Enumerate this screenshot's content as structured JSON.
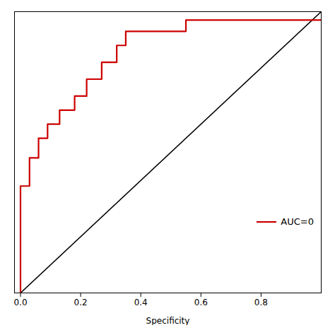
{
  "chart_data": {
    "type": "line",
    "xlabel": "Specificity",
    "xlim": [
      -0.02,
      1.0
    ],
    "ylim": [
      0.0,
      1.0
    ],
    "xticks": [
      {
        "value": 0.0,
        "label": "0.0"
      },
      0.2,
      0.4,
      0.6,
      0.8
    ],
    "yticks": [],
    "tick_labels": "x",
    "legend": "lower right",
    "series": [
      {
        "color": "#000000",
        "x": [
          0,
          1
        ],
        "values": [
          0,
          1
        ]
      },
      {
        "name": "AUC=0",
        "color": "#cc0000",
        "x": [
          0.0,
          0.0,
          0.03,
          0.03,
          0.06,
          0.06,
          0.09,
          0.09,
          0.13,
          0.13,
          0.18,
          0.18,
          0.22,
          0.22,
          0.27,
          0.27,
          0.32,
          0.32,
          0.35,
          0.35,
          0.55,
          0.55,
          1.0
        ],
        "values": [
          0.0,
          0.38,
          0.38,
          0.48,
          0.48,
          0.55,
          0.55,
          0.6,
          0.6,
          0.65,
          0.65,
          0.7,
          0.7,
          0.76,
          0.76,
          0.82,
          0.82,
          0.88,
          0.88,
          0.93,
          0.93,
          0.97,
          0.97
        ]
      }
    ]
  }
}
